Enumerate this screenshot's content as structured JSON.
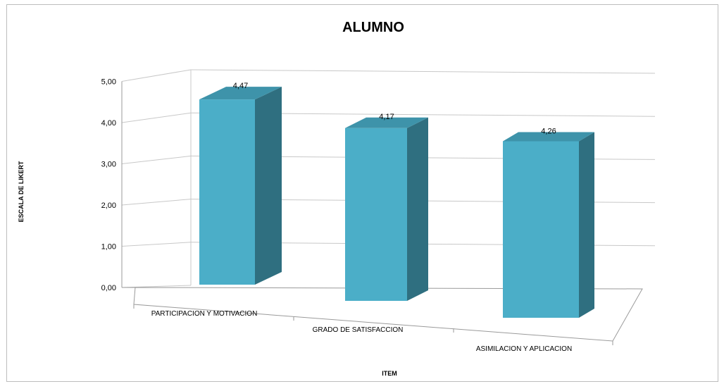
{
  "chart_data": {
    "type": "bar",
    "title": "ALUMNO",
    "xlabel": "ITEM",
    "ylabel": "ESCALA DE LIKERT",
    "categories": [
      "PARTICIPACION Y MOTIVACION",
      "GRADO DE SATISFACCION",
      "ASIMILACION Y APLICACION"
    ],
    "values": [
      4.47,
      4.17,
      4.26
    ],
    "data_labels": [
      "4,47",
      "4,17",
      "4,26"
    ],
    "ylim": [
      0,
      5
    ],
    "yticks": [
      0,
      1,
      2,
      3,
      4,
      5
    ],
    "ytick_labels": [
      "0,00",
      "1,00",
      "2,00",
      "3,00",
      "4,00",
      "5,00"
    ],
    "grid": true,
    "legend": "none",
    "colors": {
      "bar_front": "#4BAEC8",
      "bar_side": "#2F6F80",
      "bar_top": "#3E93AA",
      "grid": "#c8c8c8"
    }
  }
}
